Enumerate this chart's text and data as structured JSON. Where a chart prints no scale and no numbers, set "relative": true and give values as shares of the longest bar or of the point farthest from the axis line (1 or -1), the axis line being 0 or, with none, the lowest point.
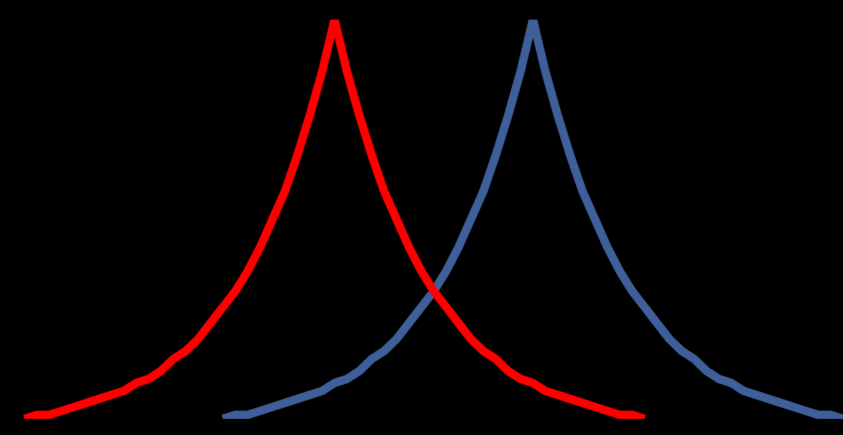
{
  "chart_data": {
    "type": "line",
    "relative": true,
    "categories": [
      null,
      null,
      null,
      null,
      null,
      null,
      null,
      null,
      null,
      null,
      null,
      null,
      null,
      null,
      null,
      null,
      null,
      null,
      null,
      null,
      null,
      null,
      null,
      null,
      null,
      null,
      null,
      null,
      null,
      null,
      null,
      null,
      null,
      null,
      null,
      null,
      null,
      null,
      null,
      null,
      null,
      null,
      null,
      null,
      null,
      null,
      null,
      null,
      null,
      null,
      null,
      null,
      null,
      null,
      null,
      null,
      null,
      null,
      null,
      null,
      null,
      null,
      null,
      null,
      null,
      null,
      null
    ],
    "series": [
      {
        "color": "#ff0000",
        "values": [
          0,
          0.01,
          0.01,
          0.02,
          0.03,
          0.04,
          0.05,
          0.06,
          0.07,
          0.09,
          0.1,
          0.12,
          0.15,
          0.17,
          0.2,
          0.24,
          0.28,
          0.32,
          0.37,
          0.43,
          0.5,
          0.57,
          0.66,
          0.76,
          0.87,
          1,
          0.87,
          0.76,
          0.66,
          0.57,
          0.5,
          0.43,
          0.37,
          0.32,
          0.28,
          0.24,
          0.2,
          0.17,
          0.15,
          0.12,
          0.1,
          0.09,
          0.07,
          0.06,
          0.05,
          0.04,
          0.03,
          0.02,
          0.01,
          0.01,
          0,
          null,
          null,
          null,
          null,
          null,
          null,
          null,
          null,
          null,
          null,
          null,
          null,
          null,
          null,
          null,
          null
        ]
      },
      {
        "color": "#3f5f9a",
        "values": [
          null,
          null,
          null,
          null,
          null,
          null,
          null,
          null,
          null,
          null,
          null,
          null,
          null,
          null,
          null,
          null,
          0,
          0.01,
          0.01,
          0.02,
          0.03,
          0.04,
          0.05,
          0.06,
          0.07,
          0.09,
          0.1,
          0.12,
          0.15,
          0.17,
          0.2,
          0.24,
          0.28,
          0.32,
          0.37,
          0.43,
          0.5,
          0.57,
          0.66,
          0.76,
          0.87,
          1,
          0.87,
          0.76,
          0.66,
          0.57,
          0.5,
          0.43,
          0.37,
          0.32,
          0.28,
          0.24,
          0.2,
          0.17,
          0.15,
          0.12,
          0.1,
          0.09,
          0.07,
          0.06,
          0.05,
          0.04,
          0.03,
          0.02,
          0.01,
          0.01,
          0
        ]
      }
    ]
  }
}
